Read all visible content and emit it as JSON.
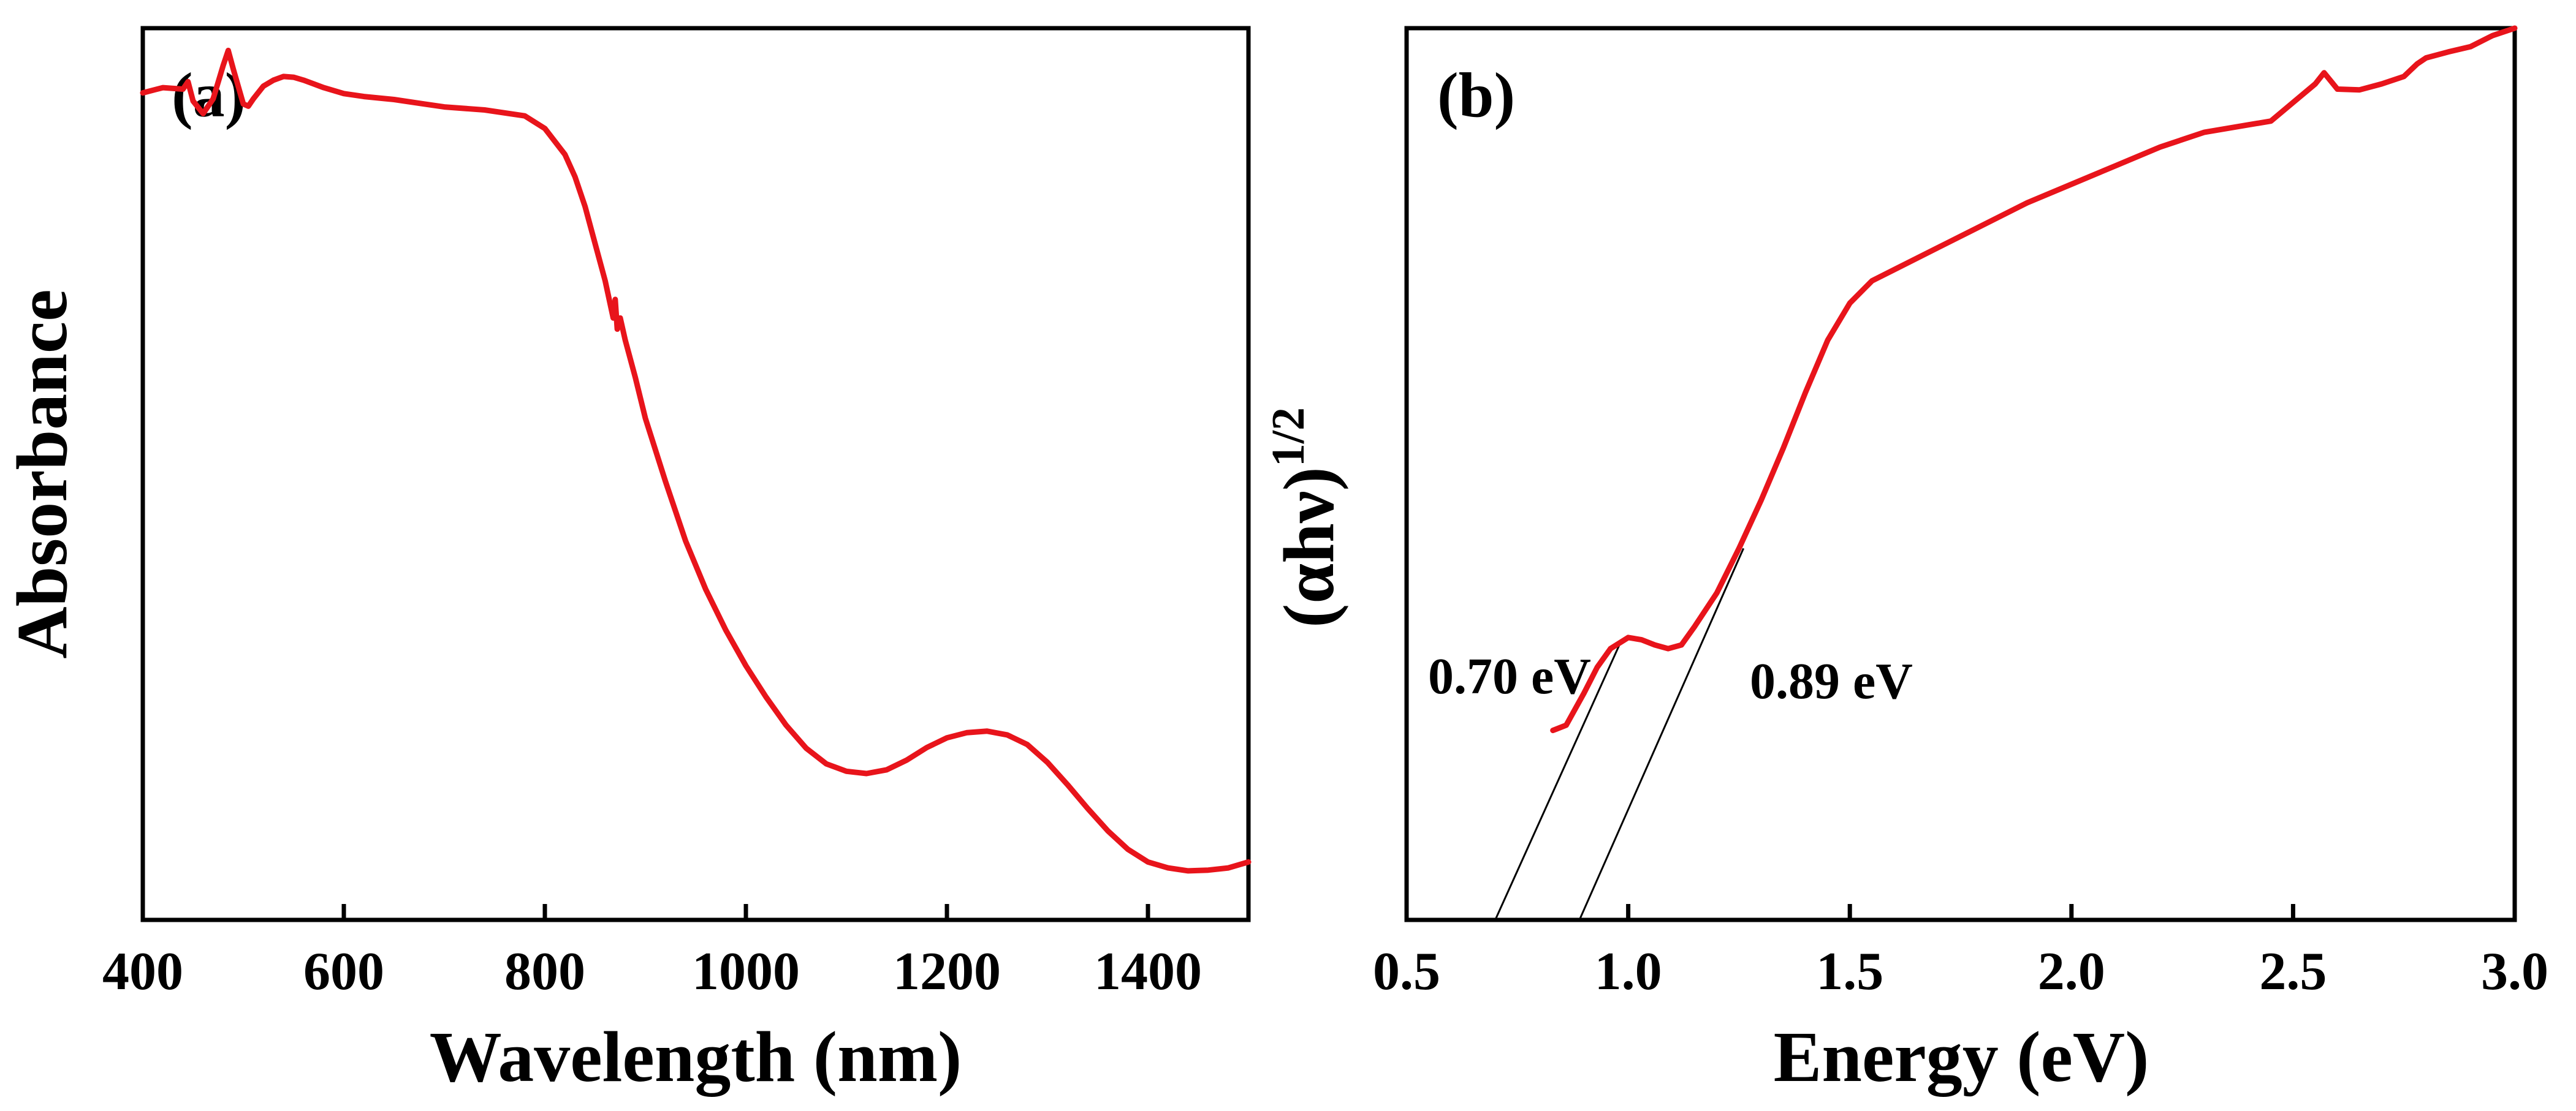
{
  "colors": {
    "curve": "#e8141b",
    "axes": "#000000",
    "fit_line": "#000000",
    "background": "#ffffff"
  },
  "chart_data": [
    {
      "type": "line",
      "panel_label": "(a)",
      "title": "",
      "xlabel": "Wavelength (nm)",
      "ylabel": "Absorbance",
      "xlim": [
        400,
        1500
      ],
      "ylim": [
        0,
        1.2
      ],
      "xticks": [
        400,
        600,
        800,
        1000,
        1200,
        1400
      ],
      "xtick_labels": [
        "400",
        "600",
        "800",
        "1000",
        "1200",
        "1400"
      ],
      "show_y_ticks": false,
      "series": [
        {
          "name": "Absorbance",
          "color": "#e8141b",
          "x": [
            400,
            420,
            440,
            445,
            450,
            460,
            470,
            480,
            485,
            490,
            500,
            505,
            510,
            520,
            530,
            540,
            550,
            560,
            580,
            600,
            620,
            650,
            680,
            700,
            740,
            780,
            800,
            820,
            830,
            840,
            850,
            860,
            868,
            870,
            872,
            875,
            880,
            890,
            900,
            920,
            940,
            960,
            980,
            1000,
            1020,
            1040,
            1060,
            1080,
            1100,
            1120,
            1140,
            1160,
            1180,
            1200,
            1220,
            1240,
            1260,
            1280,
            1300,
            1320,
            1340,
            1360,
            1380,
            1400,
            1420,
            1440,
            1460,
            1480,
            1500
          ],
          "y": [
            1.113,
            1.12,
            1.118,
            1.128,
            1.102,
            1.085,
            1.105,
            1.15,
            1.17,
            1.145,
            1.098,
            1.095,
            1.105,
            1.122,
            1.13,
            1.135,
            1.134,
            1.13,
            1.12,
            1.112,
            1.108,
            1.104,
            1.098,
            1.094,
            1.09,
            1.082,
            1.065,
            1.03,
            1.0,
            0.96,
            0.91,
            0.86,
            0.81,
            0.835,
            0.795,
            0.81,
            0.78,
            0.73,
            0.675,
            0.59,
            0.51,
            0.445,
            0.39,
            0.342,
            0.3,
            0.262,
            0.231,
            0.21,
            0.2,
            0.197,
            0.202,
            0.215,
            0.232,
            0.245,
            0.252,
            0.254,
            0.249,
            0.236,
            0.212,
            0.182,
            0.15,
            0.12,
            0.095,
            0.078,
            0.07,
            0.066,
            0.067,
            0.07,
            0.078
          ]
        }
      ]
    },
    {
      "type": "line",
      "panel_label": "(b)",
      "title": "",
      "xlabel": "Energy (eV)",
      "ylabel": "(αhν)",
      "ylabel_superscript": "1/2",
      "xlim": [
        0.5,
        3.0
      ],
      "ylim": [
        0,
        1.2
      ],
      "xticks": [
        0.5,
        1.0,
        1.5,
        2.0,
        2.5,
        3.0
      ],
      "xtick_labels": [
        "0.5",
        "1.0",
        "1.5",
        "2.0",
        "2.5",
        "3.0"
      ],
      "show_y_ticks": false,
      "series": [
        {
          "name": "(αhν)^1/2",
          "color": "#e8141b",
          "x": [
            0.83,
            0.86,
            0.9,
            0.93,
            0.96,
            1.0,
            1.03,
            1.06,
            1.09,
            1.12,
            1.15,
            1.2,
            1.25,
            1.3,
            1.35,
            1.4,
            1.45,
            1.5,
            1.55,
            1.6,
            1.7,
            1.8,
            1.9,
            2.0,
            2.1,
            2.2,
            2.3,
            2.4,
            2.45,
            2.5,
            2.55,
            2.57,
            2.6,
            2.65,
            2.7,
            2.75,
            2.78,
            2.8,
            2.85,
            2.9,
            2.95,
            3.0
          ],
          "y": [
            0.255,
            0.262,
            0.305,
            0.34,
            0.365,
            0.38,
            0.377,
            0.37,
            0.365,
            0.37,
            0.395,
            0.44,
            0.5,
            0.565,
            0.635,
            0.71,
            0.78,
            0.83,
            0.86,
            0.875,
            0.905,
            0.935,
            0.965,
            0.99,
            1.015,
            1.04,
            1.06,
            1.07,
            1.075,
            1.1,
            1.125,
            1.14,
            1.118,
            1.117,
            1.125,
            1.135,
            1.152,
            1.16,
            1.168,
            1.175,
            1.19,
            1.2
          ]
        }
      ],
      "tangent_lines": [
        {
          "label": "0.70 eV",
          "x": [
            0.7,
            0.98
          ],
          "y": [
            0.0,
            0.37
          ]
        },
        {
          "label": "0.89 eV",
          "x": [
            0.89,
            1.26
          ],
          "y": [
            0.0,
            0.5
          ]
        }
      ],
      "annotations": [
        "0.70 eV",
        "0.89 eV"
      ]
    }
  ]
}
